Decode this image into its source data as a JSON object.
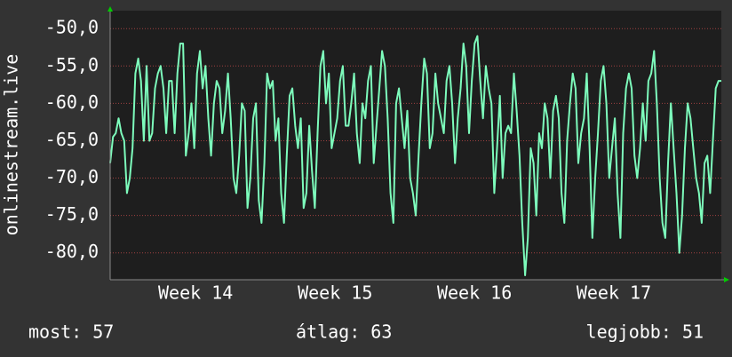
{
  "chart_data": {
    "type": "line",
    "y_label": "onlinestream.live",
    "series": [
      {
        "color": "#7dfcbc",
        "values": [
          -68,
          -64.5,
          -64,
          -62,
          -64,
          -65,
          -72,
          -70,
          -66,
          -56,
          -54,
          -57,
          -65,
          -55,
          -65,
          -64,
          -58,
          -56,
          -55,
          -58,
          -64,
          -57,
          -57,
          -64,
          -56,
          -52,
          -52,
          -67,
          -64,
          -60,
          -66,
          -56,
          -53,
          -58,
          -55,
          -62,
          -67,
          -60,
          -57,
          -58,
          -64,
          -61,
          -56,
          -62,
          -70,
          -72,
          -67,
          -60,
          -61,
          -74,
          -70,
          -62,
          -60,
          -73,
          -76,
          -68,
          -56,
          -58,
          -57,
          -65,
          -62,
          -72,
          -76,
          -67,
          -59,
          -58,
          -63,
          -66,
          -62,
          -74,
          -72,
          -63,
          -69,
          -74,
          -64,
          -55,
          -53,
          -60,
          -56,
          -66,
          -64,
          -62,
          -57,
          -55,
          -63,
          -63,
          -60,
          -56,
          -64,
          -68,
          -60,
          -62,
          -57,
          -55,
          -68,
          -63,
          -58,
          -53,
          -55,
          -62,
          -72,
          -76,
          -60,
          -58,
          -62,
          -66,
          -61,
          -70,
          -72,
          -75,
          -67,
          -60,
          -54,
          -56,
          -66,
          -64,
          -56,
          -60,
          -62,
          -64,
          -57,
          -55,
          -60,
          -68,
          -62,
          -58,
          -52,
          -55,
          -64,
          -57,
          -52,
          -51,
          -57,
          -62,
          -55,
          -58,
          -60,
          -72,
          -66,
          -59,
          -70,
          -64,
          -63,
          -64,
          -56,
          -61,
          -67,
          -76,
          -83,
          -78,
          -66,
          -68,
          -75,
          -64,
          -66,
          -60,
          -62,
          -70,
          -61,
          -59,
          -62,
          -72,
          -76,
          -65,
          -60,
          -56,
          -58,
          -68,
          -64,
          -62,
          -56,
          -66,
          -78,
          -70,
          -64,
          -57,
          -55,
          -60,
          -70,
          -66,
          -62,
          -72,
          -78,
          -64,
          -58,
          -56,
          -58,
          -67,
          -70,
          -66,
          -60,
          -65,
          -57,
          -56,
          -53,
          -60,
          -70,
          -76,
          -78,
          -68,
          -60,
          -66,
          -72,
          -80,
          -75,
          -66,
          -60,
          -62,
          -66,
          -70,
          -72,
          -76,
          -68,
          -67,
          -72,
          -65,
          -58,
          -57,
          -57
        ]
      }
    ],
    "ylim": [
      -83.6,
      -47.6
    ],
    "yticks": [
      {
        "value": -50,
        "label": "-50,0"
      },
      {
        "value": -55,
        "label": "-55,0"
      },
      {
        "value": -60,
        "label": "-60,0"
      },
      {
        "value": -65,
        "label": "-65,0"
      },
      {
        "value": -70,
        "label": "-70,0"
      },
      {
        "value": -75,
        "label": "-75,0"
      },
      {
        "value": -80,
        "label": "-80,0"
      }
    ],
    "xlim": [
      0,
      30.7
    ],
    "xticks": [
      {
        "value": 4.29,
        "label": "Week 14"
      },
      {
        "value": 11.3,
        "label": "Week 15"
      },
      {
        "value": 18.3,
        "label": "Week 16"
      },
      {
        "value": 25.3,
        "label": "Week 17"
      }
    ],
    "grid": true,
    "footer": [
      "most: 57",
      "átlag: 63",
      "legjobb: 51"
    ]
  }
}
